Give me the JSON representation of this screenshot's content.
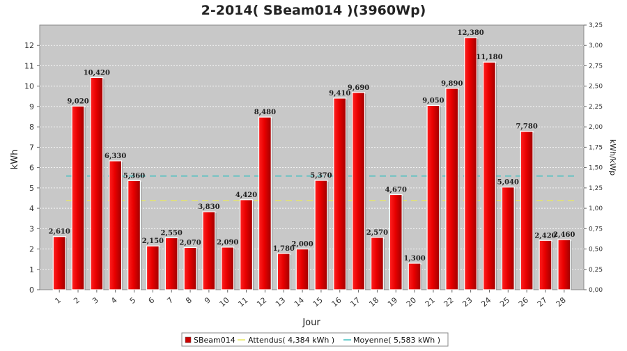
{
  "chart_data": {
    "type": "bar",
    "title": "2-2014( SBeam014 )(3960Wp)",
    "xlabel": "Jour",
    "ylabel": "kWh",
    "ylabel_right": "kWh/kWp",
    "ylim": [
      0,
      13
    ],
    "ylim_right": [
      0,
      3.25
    ],
    "yticks": [
      0,
      1,
      2,
      3,
      4,
      5,
      6,
      7,
      8,
      9,
      10,
      11,
      12
    ],
    "yticks_right": [
      "0,00",
      "0,25",
      "0,50",
      "0,75",
      "1,00",
      "1,25",
      "1,50",
      "1,75",
      "2,00",
      "2,25",
      "2,50",
      "2,75",
      "3,00",
      "3,25"
    ],
    "grid": true,
    "categories": [
      "1",
      "2",
      "3",
      "4",
      "5",
      "6",
      "7",
      "8",
      "9",
      "10",
      "11",
      "12",
      "13",
      "14",
      "15",
      "16",
      "17",
      "18",
      "19",
      "20",
      "21",
      "22",
      "23",
      "24",
      "25",
      "26",
      "27",
      "28"
    ],
    "series": [
      {
        "name": "SBeam014",
        "color": "#dd0000",
        "values": [
          2.61,
          9.02,
          10.42,
          6.33,
          5.36,
          2.15,
          2.55,
          2.07,
          3.83,
          2.09,
          4.42,
          8.48,
          1.78,
          2.0,
          5.37,
          9.41,
          9.69,
          2.57,
          4.67,
          1.3,
          9.05,
          9.89,
          12.38,
          11.18,
          5.04,
          7.78,
          2.42,
          2.46
        ],
        "labels": [
          "2,610",
          "9,020",
          "10,420",
          "6,330",
          "5,360",
          "2,150",
          "2,550",
          "2,070",
          "3,830",
          "2,090",
          "4,420",
          "8,480",
          "1,780",
          "2,000",
          "5,370",
          "9,410",
          "9,690",
          "2,570",
          "4,670",
          "1,300",
          "9,050",
          "9,890",
          "12,380",
          "11,180",
          "5,040",
          "7,780",
          "2,420",
          "2,460"
        ]
      }
    ],
    "reference_lines": [
      {
        "name": "Attendus( 4,384 kWh )",
        "value": 4.384,
        "color": "#e8e860",
        "style": "dashed"
      },
      {
        "name": "Moyenne( 5,583 kWh )",
        "value": 5.583,
        "color": "#40c0c0",
        "style": "dashed"
      }
    ],
    "legend_position": "bottom"
  }
}
